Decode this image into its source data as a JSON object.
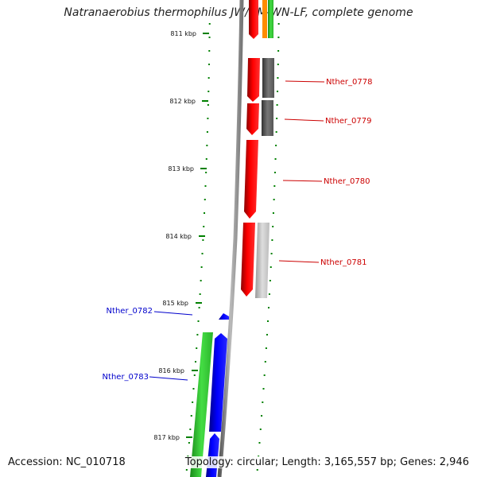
{
  "title": "Natranaerobius thermophilus JW/NM-WN-LF, complete genome",
  "footer": {
    "accession": "Accession: NC_010718",
    "topology": "Topology: circular; Length: 3,165,557 bp; Genes: 2,946"
  },
  "colors": {
    "forward_cds": "#ff0000",
    "reverse_cds": "#0000ff",
    "forward_label": "#cc0000",
    "reverse_label": "#0000cc",
    "tick": "#008000",
    "backbone": "#808080",
    "forward_match_dark": "#666666",
    "forward_match_light": "#bbbbbb",
    "reverse_match": "#33cc33",
    "orange_feature": "#ff8c00"
  },
  "ruler": {
    "unit": "kbp",
    "ticks": [
      {
        "kbp": 811,
        "label": "811 kbp"
      },
      {
        "kbp": 812,
        "label": "812 kbp"
      },
      {
        "kbp": 813,
        "label": "813 kbp"
      },
      {
        "kbp": 814,
        "label": "814 kbp"
      },
      {
        "kbp": 815,
        "label": "815 kbp"
      },
      {
        "kbp": 816,
        "label": "816 kbp"
      },
      {
        "kbp": 817,
        "label": "817 kbp"
      }
    ]
  },
  "genes": [
    {
      "name": "Nther_0778",
      "strand": "forward"
    },
    {
      "name": "Nther_0779",
      "strand": "forward"
    },
    {
      "name": "Nther_0780",
      "strand": "forward"
    },
    {
      "name": "Nther_0781",
      "strand": "forward"
    },
    {
      "name": "Nther_0782",
      "strand": "reverse"
    },
    {
      "name": "Nther_0783",
      "strand": "reverse"
    }
  ]
}
